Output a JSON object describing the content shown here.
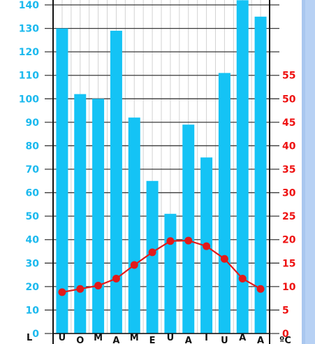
{
  "chart_data": {
    "type": "bar+line",
    "title": "",
    "xlabel": "",
    "categories": [
      "U",
      "O",
      "M",
      "A",
      "M",
      "E",
      "U",
      "A",
      "I",
      "U",
      "A",
      "A"
    ],
    "left_axis": {
      "ticks": [
        "0",
        "10",
        "20",
        "30",
        "40",
        "50",
        "60",
        "70",
        "80",
        "90",
        "100",
        "110",
        "120",
        "130",
        "140"
      ],
      "ylim": [
        0,
        140
      ]
    },
    "right_axis": {
      "ticks": [
        "0",
        "5",
        "10",
        "15",
        "20",
        "25",
        "30",
        "35",
        "40",
        "45",
        "50",
        "55"
      ],
      "ylim": [
        0,
        70
      ],
      "unit": "ºC"
    },
    "left_corner_label": "L",
    "series": [
      {
        "type": "bar",
        "axis": "left",
        "color": "#14c3f5",
        "values": [
          130,
          102,
          100,
          129,
          92,
          65,
          51,
          89,
          75,
          111,
          142,
          135
        ]
      },
      {
        "type": "line",
        "axis": "right",
        "color": "#e31a1a",
        "values": [
          8.8,
          9.5,
          10.2,
          11.7,
          14.6,
          17.3,
          19.7,
          19.8,
          18.6,
          15.9,
          11.7,
          9.5
        ]
      }
    ],
    "grid": true
  }
}
